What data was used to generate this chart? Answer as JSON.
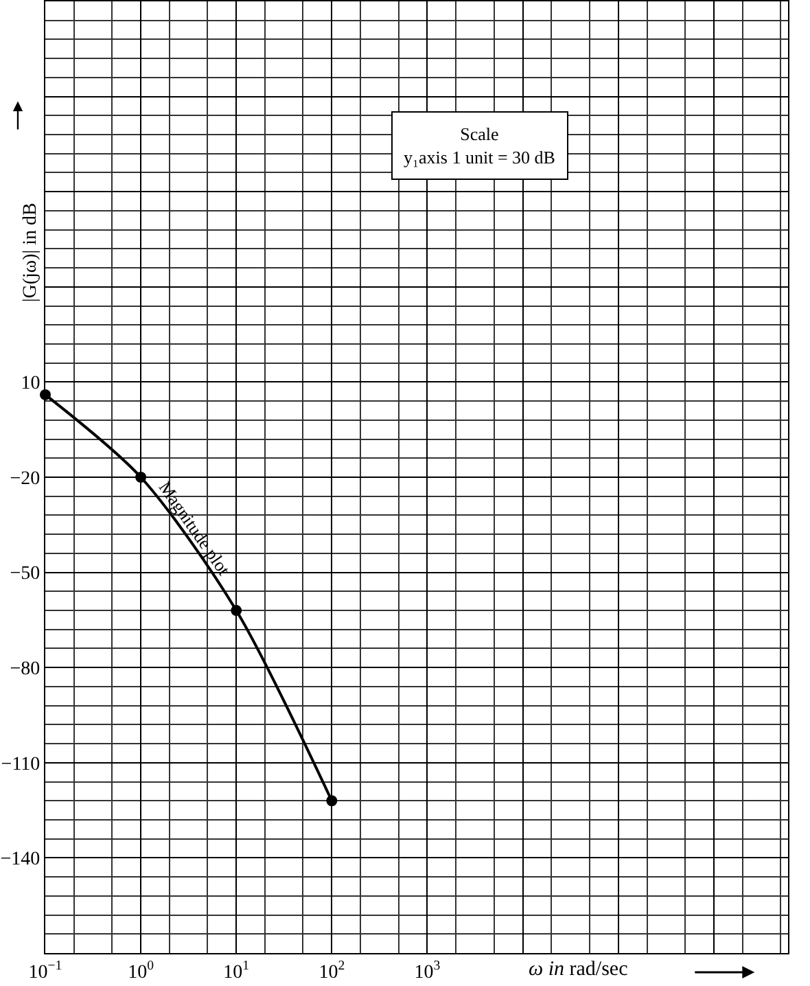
{
  "chart_data": {
    "type": "line",
    "xlabel": "ω in rad/sec",
    "ylabel": "|G(jω)| in dB",
    "x": [
      0.1,
      1,
      10,
      100
    ],
    "series": [
      {
        "color": "#000000",
        "values": [
          6,
          -20,
          -62,
          -122
        ]
      }
    ],
    "marker": "circle",
    "line_style": "solid",
    "log": "x",
    "grid": true,
    "legend": false,
    "xlim": [
      0.1,
      6000000
    ],
    "xticks": [
      {
        "value": 0.1,
        "label": "10$^{−1}$"
      },
      {
        "value": 1,
        "label": "10$^{0}$"
      },
      {
        "value": 10,
        "label": "10$^{1}$"
      },
      {
        "value": 100,
        "label": "10$^{2}$"
      },
      {
        "value": 1000,
        "label": "10$^{3}$"
      },
      {
        "value": 10000,
        "label": null
      },
      {
        "value": 100000,
        "label": null
      },
      {
        "value": 1000000,
        "label": null
      }
    ],
    "ylim": [
      -170,
      130
    ],
    "yticks": [
      {
        "value": -140,
        "label": "−140"
      },
      {
        "value": -110,
        "label": "−110"
      },
      {
        "value": -80,
        "label": "−80"
      },
      {
        "value": -50,
        "label": "−50"
      },
      {
        "value": -20,
        "label": "−20"
      },
      10,
      {
        "value": 40,
        "label": null
      },
      {
        "value": 70,
        "label": null
      },
      {
        "value": 100,
        "label": null
      }
    ],
    "annotations": [
      {
        "text": "Magnitude plot",
        "x": 3,
        "y": -36
      },
      "Scale\ny₁axis 1 unit = 30 dB"
    ]
  }
}
